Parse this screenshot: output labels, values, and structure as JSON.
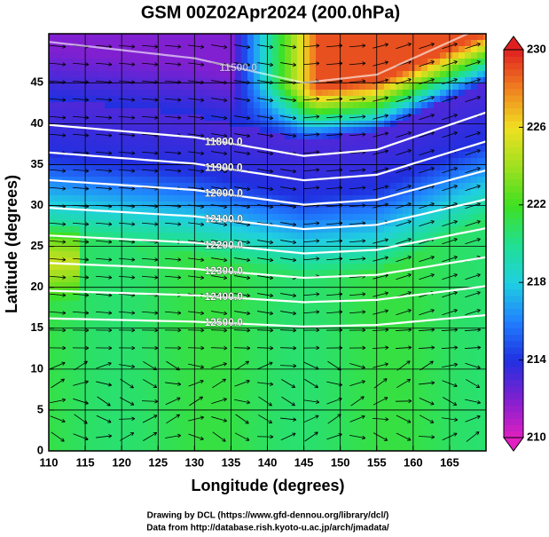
{
  "chart_data": {
    "type": "contour-map",
    "title": "GSM 00Z02Apr2024 (200.0hPa)",
    "x_label": "Longitude (degrees)",
    "y_label": "Latitude  (degrees)",
    "xlim": [
      110,
      170
    ],
    "ylim": [
      0,
      51
    ],
    "xticks": [
      110,
      115,
      120,
      125,
      130,
      135,
      140,
      145,
      150,
      155,
      160,
      165
    ],
    "yticks": [
      0,
      5,
      10,
      15,
      20,
      25,
      30,
      35,
      40,
      45
    ],
    "grid": true,
    "contours": [
      {
        "value": 11500,
        "label": "11500.0"
      },
      {
        "value": 11800,
        "label": "11800.0"
      },
      {
        "value": 11900,
        "label": "11900.0"
      },
      {
        "value": 12000,
        "label": "12000.0"
      },
      {
        "value": 12100,
        "label": "12100.0"
      },
      {
        "value": 12200,
        "label": "12200.0"
      },
      {
        "value": 12300,
        "label": "12300.0"
      },
      {
        "value": 12400,
        "label": "12400.0"
      },
      {
        "value": 12500,
        "label": "12500.0"
      }
    ],
    "contour_color": "#ffffff",
    "colorbar": {
      "lim": [
        210,
        230
      ],
      "ticks": [
        210,
        214,
        218,
        222,
        226,
        230
      ],
      "colors": [
        "#e020c0",
        "#8020d0",
        "#2030e0",
        "#2080ff",
        "#20d0e0",
        "#20e090",
        "#40e020",
        "#a0e020",
        "#f0e020",
        "#f08020",
        "#e02020"
      ]
    },
    "credits": [
      "Drawing by DCL (https://www.gfd-dennou.org/library/dcl/)",
      "Data from http://database.rish.kyoto-u.ac.jp/arch/jmadata/"
    ]
  }
}
